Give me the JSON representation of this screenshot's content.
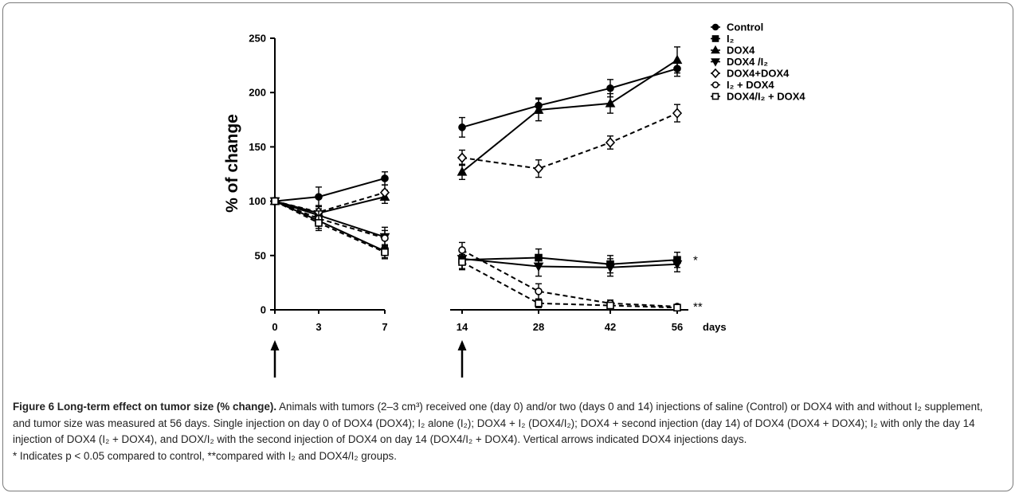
{
  "chart_data": {
    "type": "line",
    "ylabel": "% of change",
    "xlabel": "days",
    "x_ticks": [
      "0",
      "3",
      "7",
      "14",
      "28",
      "42",
      "56"
    ],
    "x_segment1": [
      "0",
      "3",
      "7"
    ],
    "x_segment2": [
      "14",
      "28",
      "42",
      "56"
    ],
    "ylim": [
      0,
      250
    ],
    "y_ticks": [
      0,
      50,
      100,
      150,
      200,
      250
    ],
    "grid": false,
    "legend_position": "top-right",
    "series": [
      {
        "name": "Control",
        "marker": "circle-filled",
        "dash": "solid",
        "seg1": [
          100,
          104,
          121
        ],
        "seg1_err": [
          0,
          9,
          6
        ],
        "seg2": [
          168,
          188,
          204,
          222
        ],
        "seg2_err": [
          9,
          7,
          8,
          7
        ]
      },
      {
        "name": "I₂",
        "marker": "square-filled",
        "dash": "solid",
        "seg1": [
          100,
          82,
          54
        ],
        "seg1_err": [
          0,
          7,
          6
        ],
        "seg2": [
          46,
          48,
          42,
          46
        ],
        "seg2_err": [
          9,
          8,
          8,
          7
        ]
      },
      {
        "name": "DOX4",
        "marker": "triangle-up-filled",
        "dash": "solid",
        "seg1": [
          100,
          89,
          104
        ],
        "seg1_err": [
          0,
          6,
          6
        ],
        "seg2": [
          127,
          184,
          190,
          230
        ],
        "seg2_err": [
          7,
          10,
          9,
          12
        ]
      },
      {
        "name": "DOX4 /I₂",
        "marker": "triangle-down-filled",
        "dash": "solid",
        "seg1": [
          100,
          87,
          67
        ],
        "seg1_err": [
          0,
          6,
          9
        ],
        "seg2": [
          47,
          40,
          39,
          42
        ],
        "seg2_err": [
          9,
          9,
          8,
          7
        ]
      },
      {
        "name": "DOX4+DOX4",
        "marker": "diamond-open",
        "dash": "dashed",
        "seg1": [
          100,
          90,
          108
        ],
        "seg1_err": [
          0,
          6,
          7
        ],
        "seg2": [
          140,
          130,
          154,
          181
        ],
        "seg2_err": [
          7,
          8,
          6,
          8
        ]
      },
      {
        "name": "I₂ + DOX4",
        "marker": "circle-open",
        "dash": "dashed",
        "seg1": [
          100,
          84,
          66
        ],
        "seg1_err": [
          0,
          7,
          7
        ],
        "seg2": [
          55,
          17,
          6,
          3
        ],
        "seg2_err": [
          7,
          7,
          3,
          2
        ]
      },
      {
        "name": "DOX4/I₂ + DOX4",
        "marker": "square-open",
        "dash": "dashed",
        "seg1": [
          100,
          80,
          53
        ],
        "seg1_err": [
          0,
          7,
          6
        ],
        "seg2": [
          44,
          6,
          4,
          2
        ],
        "seg2_err": [
          7,
          4,
          2,
          1
        ]
      }
    ],
    "annotations": [
      {
        "text": "*",
        "day": "56",
        "y": 46
      },
      {
        "text": "**",
        "day": "56",
        "y": 3
      }
    ],
    "injection_arrows": [
      "0",
      "14"
    ]
  },
  "caption": {
    "title": "Figure 6 Long-term effect on tumor size (% change).",
    "body": " Animals with tumors (2–3 cm³) received one (day 0) and/or two (days 0 and 14) injections of saline (Control) or DOX4 with and without I₂ supplement, and tumor size was measured at 56 days. Single injection on day 0 of DOX4 (DOX4); I₂ alone (I₂); DOX4 + I₂ (DOX4/I₂); DOX4 + second injection (day 14) of DOX4 (DOX4 + DOX4); I₂ with only the day 14 injection of DOX4 (I₂ + DOX4), and DOX/I₂ with the second injection of DOX4 on day 14 (DOX4/I₂ + DOX4). Vertical arrows indicated DOX4 injections days.",
    "footnote": "* Indicates p < 0.05 compared to control, **compared with I₂ and DOX4/I₂ groups."
  }
}
